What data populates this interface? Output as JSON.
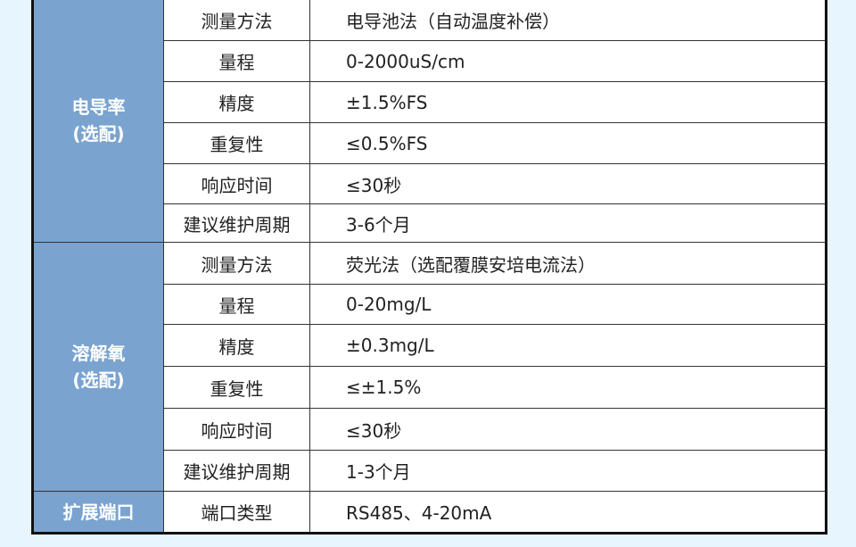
{
  "colors": {
    "background": "#e7f5fe",
    "category": "#7aa3cf"
  },
  "sections": [
    {
      "category": [
        "电导率",
        "(选配)"
      ],
      "rows": [
        {
          "key": "测量方法",
          "value": "电导池法（自动温度补偿）"
        },
        {
          "key": "量程",
          "value": "0-2000uS/cm"
        },
        {
          "key": "精度",
          "value": "±1.5%FS"
        },
        {
          "key": "重复性",
          "value": "≤0.5%FS"
        },
        {
          "key": "响应时间",
          "value": "≤30秒"
        },
        {
          "key": "建议维护周期",
          "value": "3-6个月"
        }
      ]
    },
    {
      "category": [
        "溶解氧",
        "(选配)"
      ],
      "rows": [
        {
          "key": "测量方法",
          "value": "荧光法（选配覆膜安培电流法）"
        },
        {
          "key": "量程",
          "value": "0-20mg/L"
        },
        {
          "key": "精度",
          "value": "±0.3mg/L"
        },
        {
          "key": "重复性",
          "value": "≤±1.5%"
        },
        {
          "key": "响应时间",
          "value": "≤30秒"
        },
        {
          "key": "建议维护周期",
          "value": "1-3个月"
        }
      ]
    },
    {
      "category": [
        "扩展端口"
      ],
      "rows": [
        {
          "key": "端口类型",
          "value": "RS485、4-20mA"
        }
      ]
    }
  ]
}
